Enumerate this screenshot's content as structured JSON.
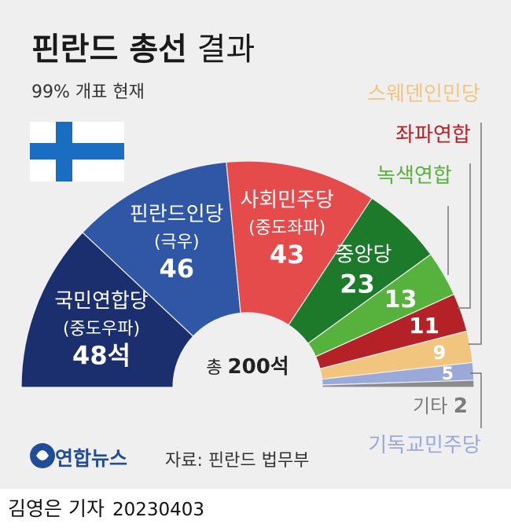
{
  "title_bold": "핀란드 총선",
  "title_light": "결과",
  "subtitle": "99% 개표 현재",
  "total_label": "총",
  "total_value": "200석",
  "source": "자료: 핀란드 법무부",
  "logo_text": "연합뉴스",
  "reporter": "김영은 기자",
  "date": "20230403",
  "colors": {
    "kok": "#1b2f6e",
    "ps": "#2f57a6",
    "sdp": "#e54b4b",
    "kesk": "#1c7a2a",
    "vihr": "#56b23d",
    "vas": "#b42127",
    "sfp": "#f2c57e",
    "kd": "#9ba9d8",
    "other": "#8c8c8c",
    "flag_blue": "#1a6ec1",
    "flag_white": "#ffffff"
  },
  "chart_data": {
    "type": "pie",
    "variant": "parliament-semicircle",
    "total": 200,
    "series": [
      {
        "name": "국민연합당",
        "sub": "(중도우파)",
        "value": 48,
        "display": "48석",
        "color_key": "kok"
      },
      {
        "name": "핀란드인당",
        "sub": "(극우)",
        "value": 46,
        "display": "46",
        "color_key": "ps"
      },
      {
        "name": "사회민주당",
        "sub": "(중도좌파)",
        "value": 43,
        "display": "43",
        "color_key": "sdp"
      },
      {
        "name": "중앙당",
        "sub": "",
        "value": 23,
        "display": "23",
        "color_key": "kesk"
      },
      {
        "name": "녹색연합",
        "sub": "",
        "value": 13,
        "display": "13",
        "color_key": "vihr"
      },
      {
        "name": "좌파연합",
        "sub": "",
        "value": 11,
        "display": "11",
        "color_key": "vas"
      },
      {
        "name": "스웨덴인민당",
        "sub": "",
        "value": 9,
        "display": "9",
        "color_key": "sfp"
      },
      {
        "name": "기독교민주당",
        "sub": "",
        "value": 5,
        "display": "5",
        "color_key": "kd"
      },
      {
        "name": "기타",
        "sub": "",
        "value": 2,
        "display": "2",
        "color_key": "other"
      }
    ]
  }
}
